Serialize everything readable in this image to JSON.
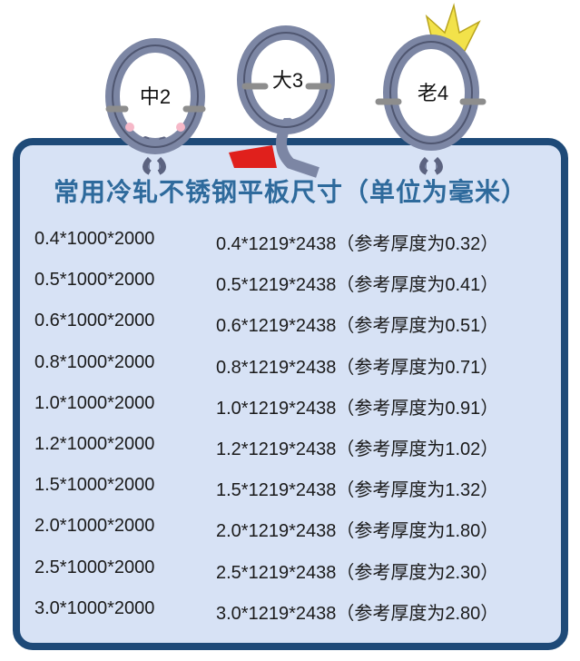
{
  "characters": [
    {
      "label": "中2"
    },
    {
      "label": "大3"
    },
    {
      "label": "老4"
    }
  ],
  "colors": {
    "border": "#1e4a78",
    "card": "#d7e2f5",
    "title": "#2e6a9c",
    "ring": "#7c86a4",
    "crown": "#f2e24a",
    "cape": "#e0201c"
  },
  "title": "常用冷轧不锈钢平板尺寸（单位为毫米）",
  "rows": [
    {
      "small": "0.4*1000*2000",
      "large": "0.4*1219*2438（参考厚度为0.32）"
    },
    {
      "small": "0.5*1000*2000",
      "large": "0.5*1219*2438（参考厚度为0.41）"
    },
    {
      "small": "0.6*1000*2000",
      "large": "0.6*1219*2438（参考厚度为0.51）"
    },
    {
      "small": "0.8*1000*2000",
      "large": "0.8*1219*2438（参考厚度为0.71）"
    },
    {
      "small": "1.0*1000*2000",
      "large": "1.0*1219*2438（参考厚度为0.91）"
    },
    {
      "small": "1.2*1000*2000",
      "large": "1.2*1219*2438（参考厚度为1.02）"
    },
    {
      "small": "1.5*1000*2000",
      "large": "1.5*1219*2438（参考厚度为1.32）"
    },
    {
      "small": "2.0*1000*2000",
      "large": "2.0*1219*2438（参考厚度为1.80）"
    },
    {
      "small": "2.5*1000*2000",
      "large": "2.5*1219*2438（参考厚度为2.30）"
    },
    {
      "small": "3.0*1000*2000",
      "large": "3.0*1219*2438（参考厚度为2.80）"
    }
  ]
}
